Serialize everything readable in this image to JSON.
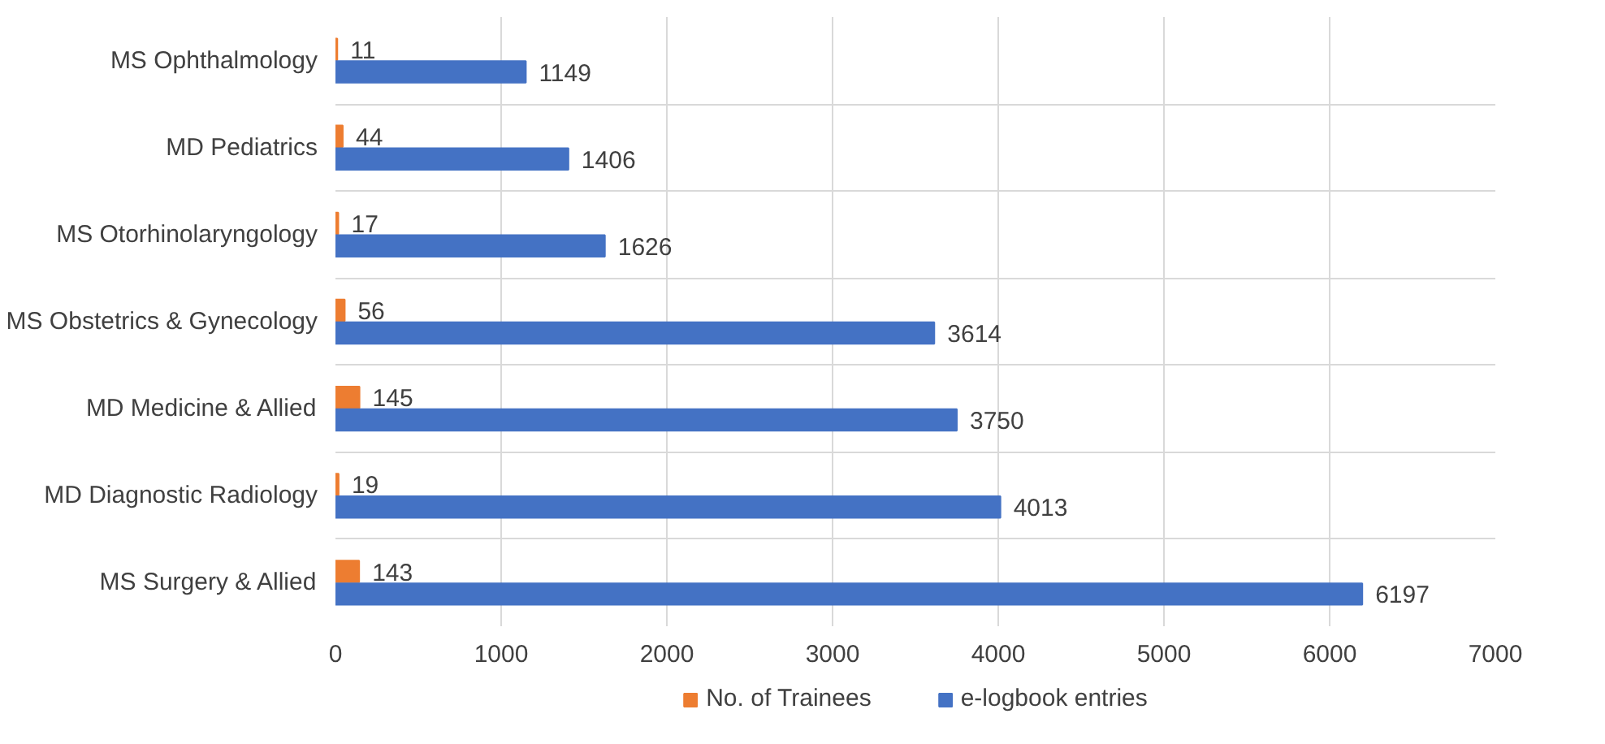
{
  "chart_data": {
    "type": "bar",
    "orientation": "horizontal",
    "categories": [
      "MS Ophthalmology",
      "MD Pediatrics",
      "MS Otorhinolaryngology",
      "MS Obstetrics & Gynecology",
      "MD Medicine & Allied",
      "MD Diagnostic Radiology",
      "MS Surgery & Allied"
    ],
    "series": [
      {
        "name": "No. of Trainees",
        "color": "#ed7d31",
        "values": [
          11,
          44,
          17,
          56,
          145,
          19,
          143
        ]
      },
      {
        "name": "e-logbook entries",
        "color": "#4472c4",
        "values": [
          1149,
          1406,
          1626,
          3614,
          3750,
          4013,
          6197
        ]
      }
    ],
    "xlim": [
      0,
      7000
    ],
    "xticks": [
      0,
      1000,
      2000,
      3000,
      4000,
      5000,
      6000,
      7000
    ],
    "grid": true,
    "legend": "bottom",
    "data_labels": true
  }
}
